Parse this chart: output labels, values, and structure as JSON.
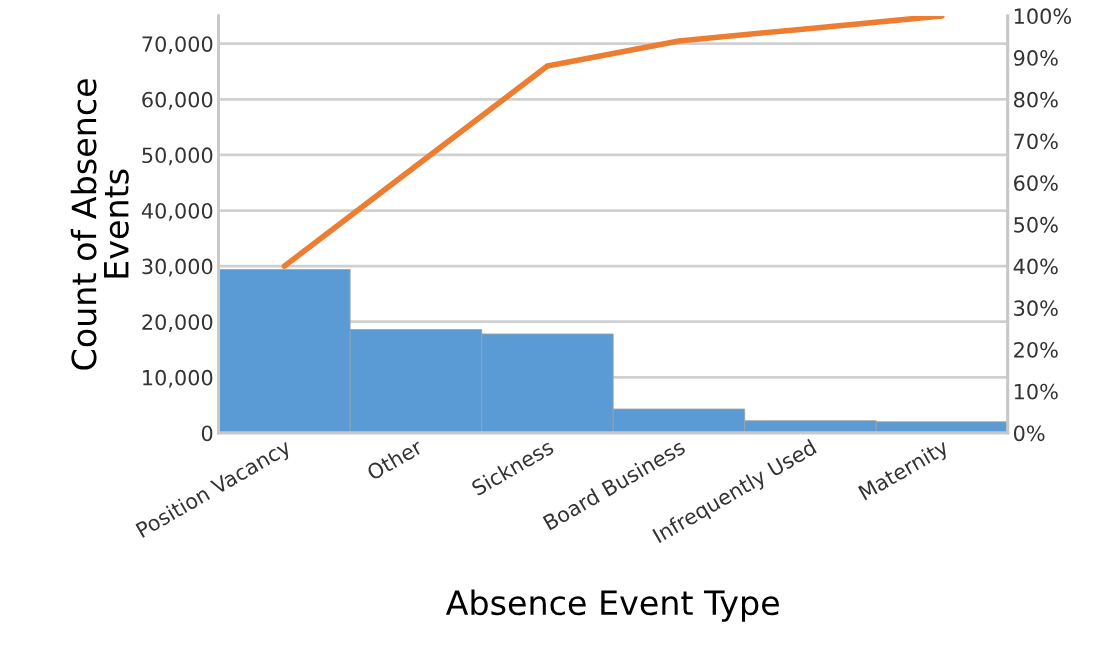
{
  "chart_data": {
    "type": "bar",
    "xlabel": "Absence Event Type",
    "ylabel": "Count of Absence Events",
    "categories": [
      "Position Vacancy",
      "Other",
      "Sickness",
      "Board Business",
      "Infrequently Used",
      "Maternity"
    ],
    "series": [
      {
        "color": "#5b9bd5",
        "values": [
          29400,
          18600,
          17800,
          4300,
          2200,
          2000
        ]
      },
      {
        "type": "line",
        "axis": "y2",
        "color": "#ed7d31",
        "values": [
          40,
          64,
          88,
          94,
          97,
          100
        ]
      }
    ],
    "ylim": [
      0,
      75000
    ],
    "yticks": [
      {
        "value": 0,
        "label": "0"
      },
      {
        "value": 10000,
        "label": "10,000"
      },
      {
        "value": 20000,
        "label": "20,000"
      },
      {
        "value": 30000,
        "label": "30,000"
      },
      {
        "value": 40000,
        "label": "40,000"
      },
      {
        "value": 50000,
        "label": "50,000"
      },
      {
        "value": 60000,
        "label": "60,000"
      },
      {
        "value": 70000,
        "label": "70,000"
      }
    ],
    "y2lim": [
      0,
      100
    ],
    "y2ticks": [
      {
        "value": 0,
        "label": "0%"
      },
      {
        "value": 10,
        "label": "10%"
      },
      {
        "value": 20,
        "label": "20%"
      },
      {
        "value": 30,
        "label": "30%"
      },
      {
        "value": 40,
        "label": "40%"
      },
      {
        "value": 50,
        "label": "50%"
      },
      {
        "value": 60,
        "label": "60%"
      },
      {
        "value": 70,
        "label": "70%"
      },
      {
        "value": 80,
        "label": "80%"
      },
      {
        "value": 90,
        "label": "90%"
      },
      {
        "value": 100,
        "label": "100%"
      }
    ],
    "grid": "y",
    "legend": false,
    "marker": "none",
    "line_style": "solid"
  }
}
